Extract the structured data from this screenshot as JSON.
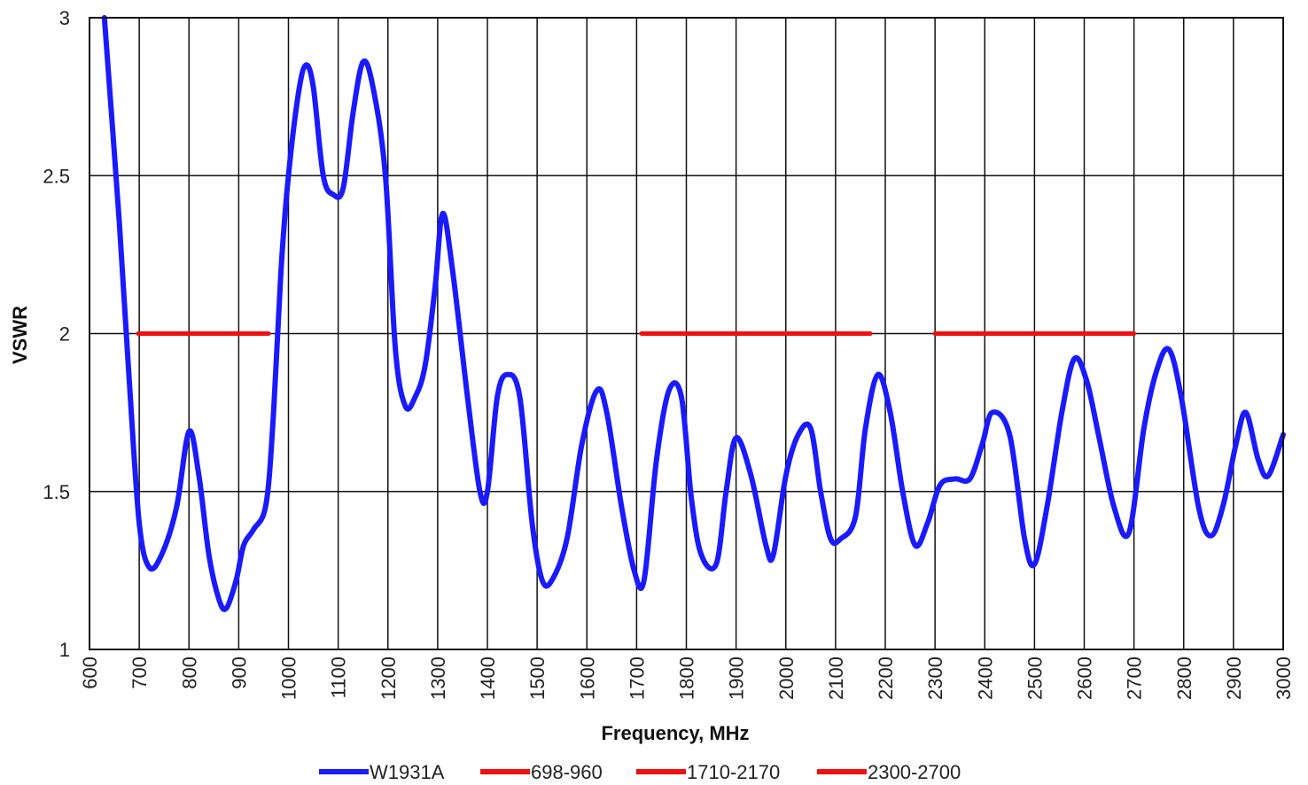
{
  "chart_data": {
    "type": "line",
    "xlabel": "Frequency, MHz",
    "ylabel": "VSWR",
    "xlim": [
      600,
      3000
    ],
    "ylim": [
      1,
      3
    ],
    "x_ticks": [
      600,
      700,
      800,
      900,
      1000,
      1100,
      1200,
      1300,
      1400,
      1500,
      1600,
      1700,
      1800,
      1900,
      2000,
      2100,
      2200,
      2300,
      2400,
      2500,
      2600,
      2700,
      2800,
      2900,
      3000
    ],
    "y_ticks": [
      1,
      1.5,
      2,
      2.5,
      3
    ],
    "grid": true,
    "legend_position": "bottom",
    "series": [
      {
        "name": "W1931A",
        "color": "#1a1aff",
        "points": [
          [
            630,
            3.0
          ],
          [
            660,
            2.35
          ],
          [
            680,
            1.85
          ],
          [
            700,
            1.4
          ],
          [
            720,
            1.26
          ],
          [
            745,
            1.3
          ],
          [
            775,
            1.45
          ],
          [
            800,
            1.69
          ],
          [
            820,
            1.55
          ],
          [
            840,
            1.3
          ],
          [
            860,
            1.16
          ],
          [
            875,
            1.13
          ],
          [
            895,
            1.22
          ],
          [
            910,
            1.33
          ],
          [
            930,
            1.38
          ],
          [
            955,
            1.46
          ],
          [
            970,
            1.75
          ],
          [
            985,
            2.2
          ],
          [
            1000,
            2.5
          ],
          [
            1020,
            2.76
          ],
          [
            1035,
            2.85
          ],
          [
            1050,
            2.78
          ],
          [
            1070,
            2.5
          ],
          [
            1090,
            2.44
          ],
          [
            1110,
            2.46
          ],
          [
            1130,
            2.7
          ],
          [
            1150,
            2.86
          ],
          [
            1170,
            2.78
          ],
          [
            1195,
            2.5
          ],
          [
            1215,
            1.95
          ],
          [
            1235,
            1.77
          ],
          [
            1255,
            1.8
          ],
          [
            1275,
            1.9
          ],
          [
            1295,
            2.15
          ],
          [
            1310,
            2.38
          ],
          [
            1330,
            2.2
          ],
          [
            1360,
            1.8
          ],
          [
            1385,
            1.5
          ],
          [
            1400,
            1.5
          ],
          [
            1420,
            1.8
          ],
          [
            1440,
            1.87
          ],
          [
            1465,
            1.8
          ],
          [
            1490,
            1.4
          ],
          [
            1510,
            1.22
          ],
          [
            1530,
            1.22
          ],
          [
            1560,
            1.35
          ],
          [
            1590,
            1.65
          ],
          [
            1620,
            1.82
          ],
          [
            1640,
            1.75
          ],
          [
            1670,
            1.45
          ],
          [
            1695,
            1.25
          ],
          [
            1715,
            1.22
          ],
          [
            1740,
            1.6
          ],
          [
            1765,
            1.82
          ],
          [
            1790,
            1.8
          ],
          [
            1810,
            1.48
          ],
          [
            1830,
            1.3
          ],
          [
            1860,
            1.27
          ],
          [
            1880,
            1.5
          ],
          [
            1900,
            1.67
          ],
          [
            1930,
            1.55
          ],
          [
            1960,
            1.33
          ],
          [
            1975,
            1.3
          ],
          [
            2000,
            1.55
          ],
          [
            2025,
            1.68
          ],
          [
            2050,
            1.7
          ],
          [
            2070,
            1.5
          ],
          [
            2090,
            1.35
          ],
          [
            2110,
            1.35
          ],
          [
            2140,
            1.42
          ],
          [
            2160,
            1.7
          ],
          [
            2185,
            1.87
          ],
          [
            2210,
            1.75
          ],
          [
            2235,
            1.5
          ],
          [
            2260,
            1.33
          ],
          [
            2285,
            1.4
          ],
          [
            2310,
            1.52
          ],
          [
            2340,
            1.54
          ],
          [
            2370,
            1.54
          ],
          [
            2395,
            1.65
          ],
          [
            2415,
            1.75
          ],
          [
            2450,
            1.68
          ],
          [
            2480,
            1.35
          ],
          [
            2500,
            1.27
          ],
          [
            2525,
            1.45
          ],
          [
            2555,
            1.75
          ],
          [
            2580,
            1.92
          ],
          [
            2605,
            1.85
          ],
          [
            2630,
            1.67
          ],
          [
            2660,
            1.45
          ],
          [
            2690,
            1.37
          ],
          [
            2720,
            1.7
          ],
          [
            2745,
            1.88
          ],
          [
            2770,
            1.95
          ],
          [
            2795,
            1.8
          ],
          [
            2830,
            1.45
          ],
          [
            2855,
            1.36
          ],
          [
            2880,
            1.46
          ],
          [
            2905,
            1.65
          ],
          [
            2925,
            1.75
          ],
          [
            2950,
            1.6
          ],
          [
            2970,
            1.55
          ],
          [
            3000,
            1.68
          ]
        ]
      },
      {
        "name": "698-960",
        "color": "#ee1111",
        "points": [
          [
            698,
            2
          ],
          [
            960,
            2
          ]
        ]
      },
      {
        "name": "1710-2170",
        "color": "#ee1111",
        "points": [
          [
            1710,
            2
          ],
          [
            2170,
            2
          ]
        ]
      },
      {
        "name": "2300-2700",
        "color": "#ee1111",
        "points": [
          [
            2300,
            2
          ],
          [
            2700,
            2
          ]
        ]
      }
    ]
  }
}
